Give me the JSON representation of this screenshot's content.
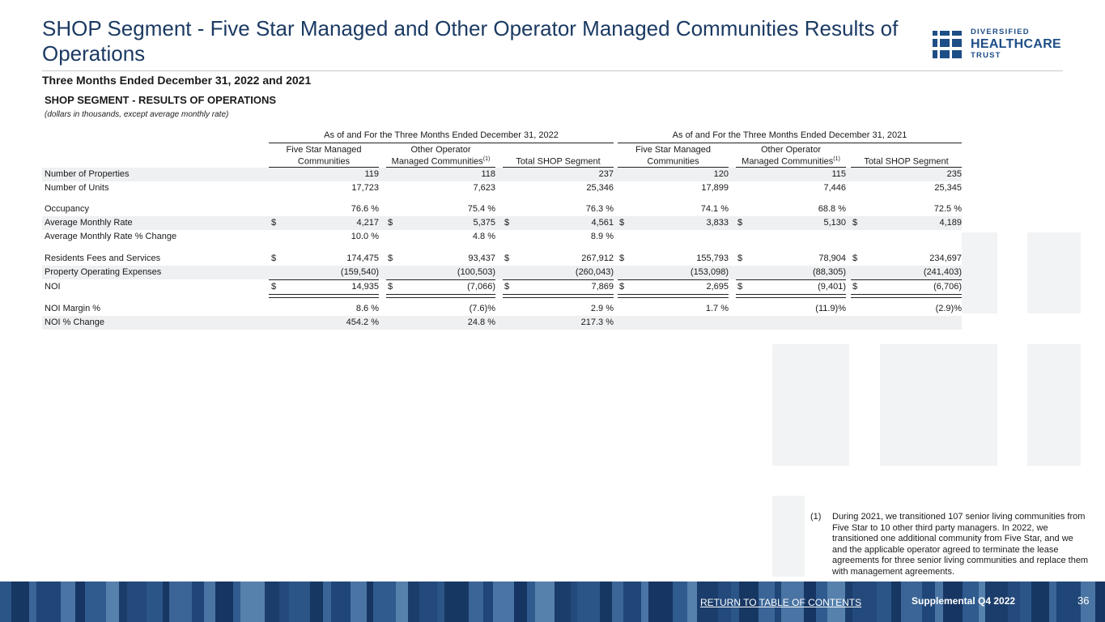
{
  "header": {
    "title": "SHOP Segment - Five Star Managed and Other Operator Managed Communities Results of Operations",
    "subtitle": "Three Months Ended December 31, 2022 and 2021",
    "section_title": "SHOP SEGMENT -  RESULTS OF OPERATIONS",
    "units_note": "(dollars in thousands, except average monthly rate)"
  },
  "logo": {
    "line1": "DIVERSIFIED",
    "line2": "HEALTHCARE",
    "line3": "TRUST",
    "color": "#1e4e86"
  },
  "table": {
    "groups": [
      "As of and For the Three Months Ended December 31, 2022",
      "As of and For the Three Months Ended December 31, 2021"
    ],
    "columns": [
      {
        "line1": "Five Star Managed",
        "line2": "Communities",
        "sup": ""
      },
      {
        "line1": "Other Operator",
        "line2": "Managed Communities",
        "sup": "(1)"
      },
      {
        "line1": "",
        "line2": "Total SHOP Segment",
        "sup": ""
      },
      {
        "line1": "Five Star Managed",
        "line2": "Communities",
        "sup": ""
      },
      {
        "line1": "Other Operator",
        "line2": "Managed Communities",
        "sup": "(1)"
      },
      {
        "line1": "",
        "line2": "Total SHOP Segment",
        "sup": ""
      }
    ],
    "currency_symbol": "$",
    "rows": [
      {
        "label": "Number of Properties",
        "values": [
          "119",
          "118",
          "237",
          "120",
          "115",
          "235"
        ],
        "dollar": false
      },
      {
        "label": "Number of Units",
        "values": [
          "17,723",
          "7,623",
          "25,346",
          "17,899",
          "7,446",
          "25,345"
        ],
        "dollar": false
      },
      {
        "label": "Occupancy",
        "values": [
          "76.6 %",
          "75.4 %",
          "76.3 %",
          "74.1 %",
          "68.8 %",
          "72.5 %"
        ],
        "dollar": false
      },
      {
        "label": "Average Monthly Rate",
        "values": [
          "4,217",
          "5,375",
          "4,561",
          "3,833",
          "5,130",
          "4,189"
        ],
        "dollar": true
      },
      {
        "label": "Average Monthly Rate % Change",
        "values": [
          "10.0 %",
          "4.8 %",
          "8.9 %",
          "",
          "",
          ""
        ],
        "dollar": false
      },
      {
        "label": "Residents Fees and Services",
        "values": [
          "174,475",
          "93,437",
          "267,912",
          "155,793",
          "78,904",
          "234,697"
        ],
        "dollar": true
      },
      {
        "label": "Property Operating Expenses",
        "values": [
          "(159,540)",
          "(100,503)",
          "(260,043)",
          "(153,098)",
          "(88,305)",
          "(241,403)"
        ],
        "dollar": false
      },
      {
        "label": "NOI",
        "values": [
          "14,935",
          "(7,066)",
          "7,869",
          "2,695",
          "(9,401)",
          "(6,706)"
        ],
        "dollar": true
      },
      {
        "label": "NOI Margin %",
        "values": [
          "8.6 %",
          "(7.6)%",
          "2.9 %",
          "1.7 %",
          "(11.9)%",
          "(2.9)%"
        ],
        "dollar": false
      },
      {
        "label": "NOI % Change",
        "values": [
          "454.2 %",
          "24.8 %",
          "217.3 %",
          "",
          "",
          ""
        ],
        "dollar": false
      }
    ]
  },
  "footnote": {
    "marker": "(1)",
    "text": "During 2021, we transitioned 107 senior living communities from Five Star to 10 other third party managers. In 2022, we transitioned one additional community from Five Star, and we and the applicable operator agreed to terminate the lease agreements for three senior living communities and replace them with management agreements."
  },
  "footer": {
    "link": "RETURN TO TABLE OF CONTENTS",
    "supplemental": "Supplemental Q4 2022",
    "page": "36"
  }
}
